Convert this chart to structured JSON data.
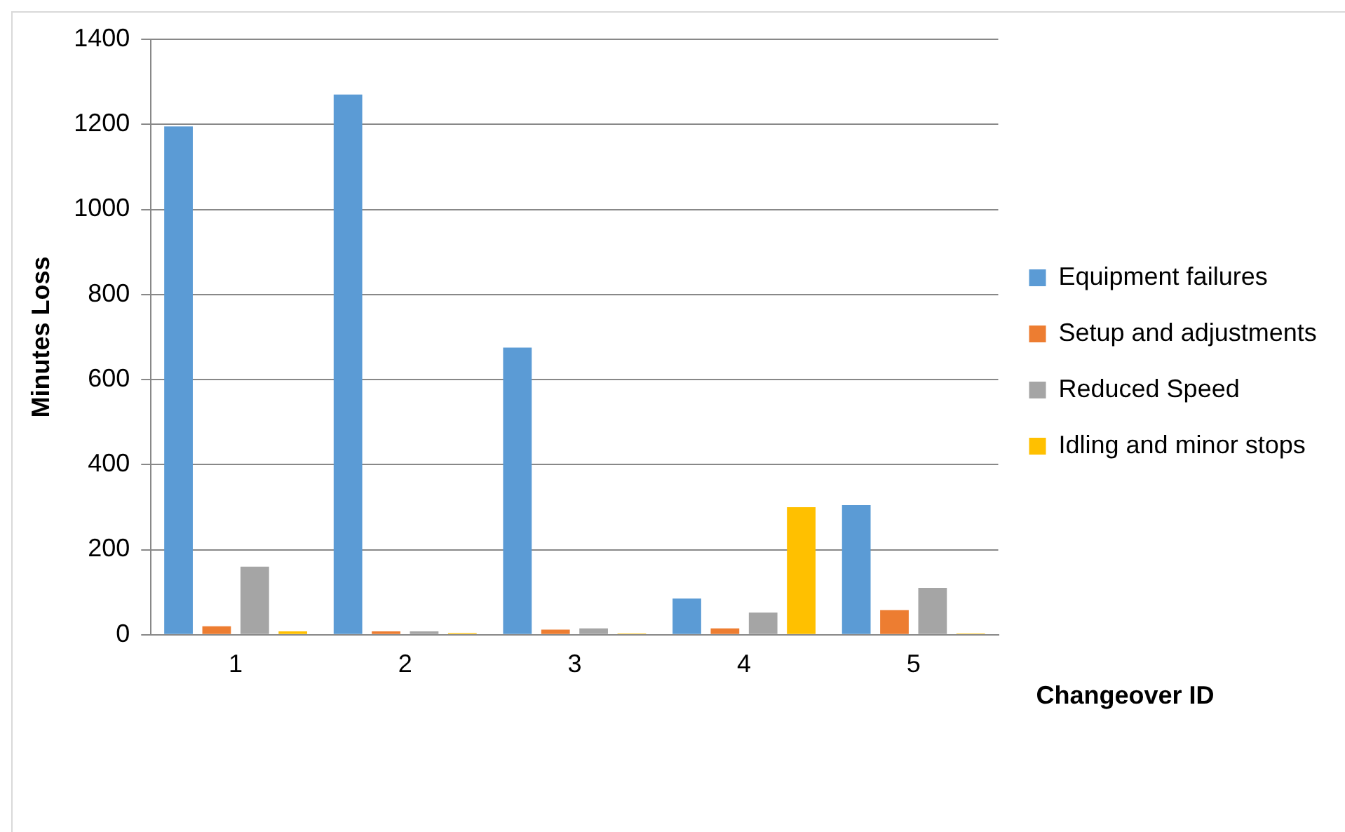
{
  "chart_data": {
    "type": "bar",
    "xlabel": "Changeover ID",
    "ylabel": "Minutes Loss",
    "categories": [
      "1",
      "2",
      "3",
      "4",
      "5"
    ],
    "series": [
      {
        "name": "Equipment failures",
        "color": "#5b9bd5",
        "values": [
          1195,
          1270,
          675,
          85,
          305
        ]
      },
      {
        "name": "Setup and adjustments",
        "color": "#ed7d31",
        "values": [
          20,
          8,
          12,
          15,
          58
        ]
      },
      {
        "name": "Reduced Speed",
        "color": "#a5a5a5",
        "values": [
          160,
          8,
          15,
          52,
          110
        ]
      },
      {
        "name": "Idling and minor stops",
        "color": "#ffc000",
        "values": [
          8,
          4,
          3,
          300,
          3
        ]
      }
    ],
    "ylim": [
      0,
      1400
    ],
    "yticks": [
      0,
      200,
      400,
      600,
      800,
      1000,
      1200,
      1400
    ],
    "grid": "y",
    "legend": "right"
  }
}
